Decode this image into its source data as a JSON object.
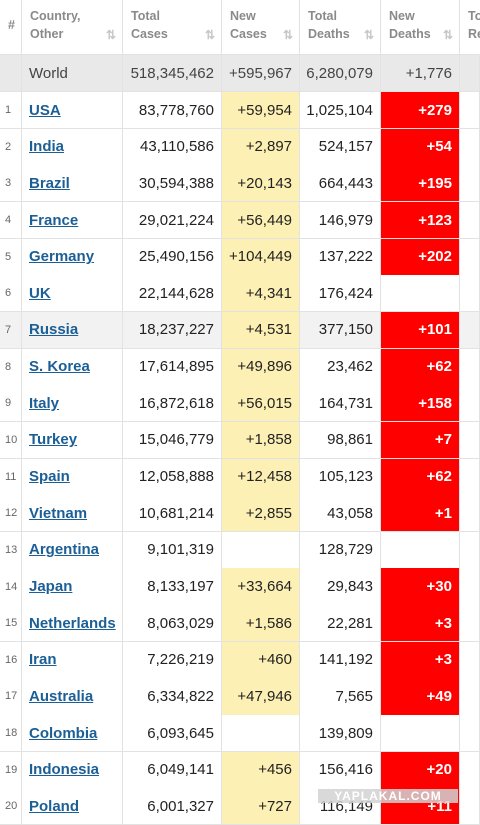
{
  "table": {
    "columns": [
      [
        "#"
      ],
      [
        "Country,",
        "Other"
      ],
      [
        "Total",
        "Cases"
      ],
      [
        "New",
        "Cases"
      ],
      [
        "Total",
        "Deaths"
      ],
      [
        "New",
        "Deaths"
      ],
      [
        "To",
        "Re"
      ]
    ],
    "world": [
      "World",
      "518,345,462",
      "+595,967",
      "6,280,079",
      "+1,776"
    ],
    "rows": [
      [
        "1",
        "USA",
        "83,778,760",
        "+59,954",
        "1,025,104",
        "+279"
      ],
      [
        "2",
        "India",
        "43,110,586",
        "+2,897",
        "524,157",
        "+54"
      ],
      [
        "3",
        "Brazil",
        "30,594,388",
        "+20,143",
        "664,443",
        "+195"
      ],
      [
        "4",
        "France",
        "29,021,224",
        "+56,449",
        "146,979",
        "+123"
      ],
      [
        "5",
        "Germany",
        "25,490,156",
        "+104,449",
        "137,222",
        "+202"
      ],
      [
        "6",
        "UK",
        "22,144,628",
        "+4,341",
        "176,424",
        null
      ],
      [
        "7",
        "Russia",
        "18,237,227",
        "+4,531",
        "377,150",
        "+101"
      ],
      [
        "8",
        "S. Korea",
        "17,614,895",
        "+49,896",
        "23,462",
        "+62"
      ],
      [
        "9",
        "Italy",
        "16,872,618",
        "+56,015",
        "164,731",
        "+158"
      ],
      [
        "10",
        "Turkey",
        "15,046,779",
        "+1,858",
        "98,861",
        "+7"
      ],
      [
        "11",
        "Spain",
        "12,058,888",
        "+12,458",
        "105,123",
        "+62"
      ],
      [
        "12",
        "Vietnam",
        "10,681,214",
        "+2,855",
        "43,058",
        "+1"
      ],
      [
        "13",
        "Argentina",
        "9,101,319",
        null,
        "128,729",
        null
      ],
      [
        "14",
        "Japan",
        "8,133,197",
        "+33,664",
        "29,843",
        "+30"
      ],
      [
        "15",
        "Netherlands",
        "8,063,029",
        "+1,586",
        "22,281",
        "+3"
      ],
      [
        "16",
        "Iran",
        "7,226,219",
        "+460",
        "141,192",
        "+3"
      ],
      [
        "17",
        "Australia",
        "6,334,822",
        "+47,946",
        "7,565",
        "+49"
      ],
      [
        "18",
        "Colombia",
        "6,093,645",
        null,
        "139,809",
        null
      ],
      [
        "19",
        "Indonesia",
        "6,049,141",
        "+456",
        "156,416",
        "+20"
      ],
      [
        "20",
        "Poland",
        "6,001,327",
        "+727",
        "116,149",
        "+11"
      ]
    ],
    "watermark": "YAPLAKAL.COM"
  }
}
